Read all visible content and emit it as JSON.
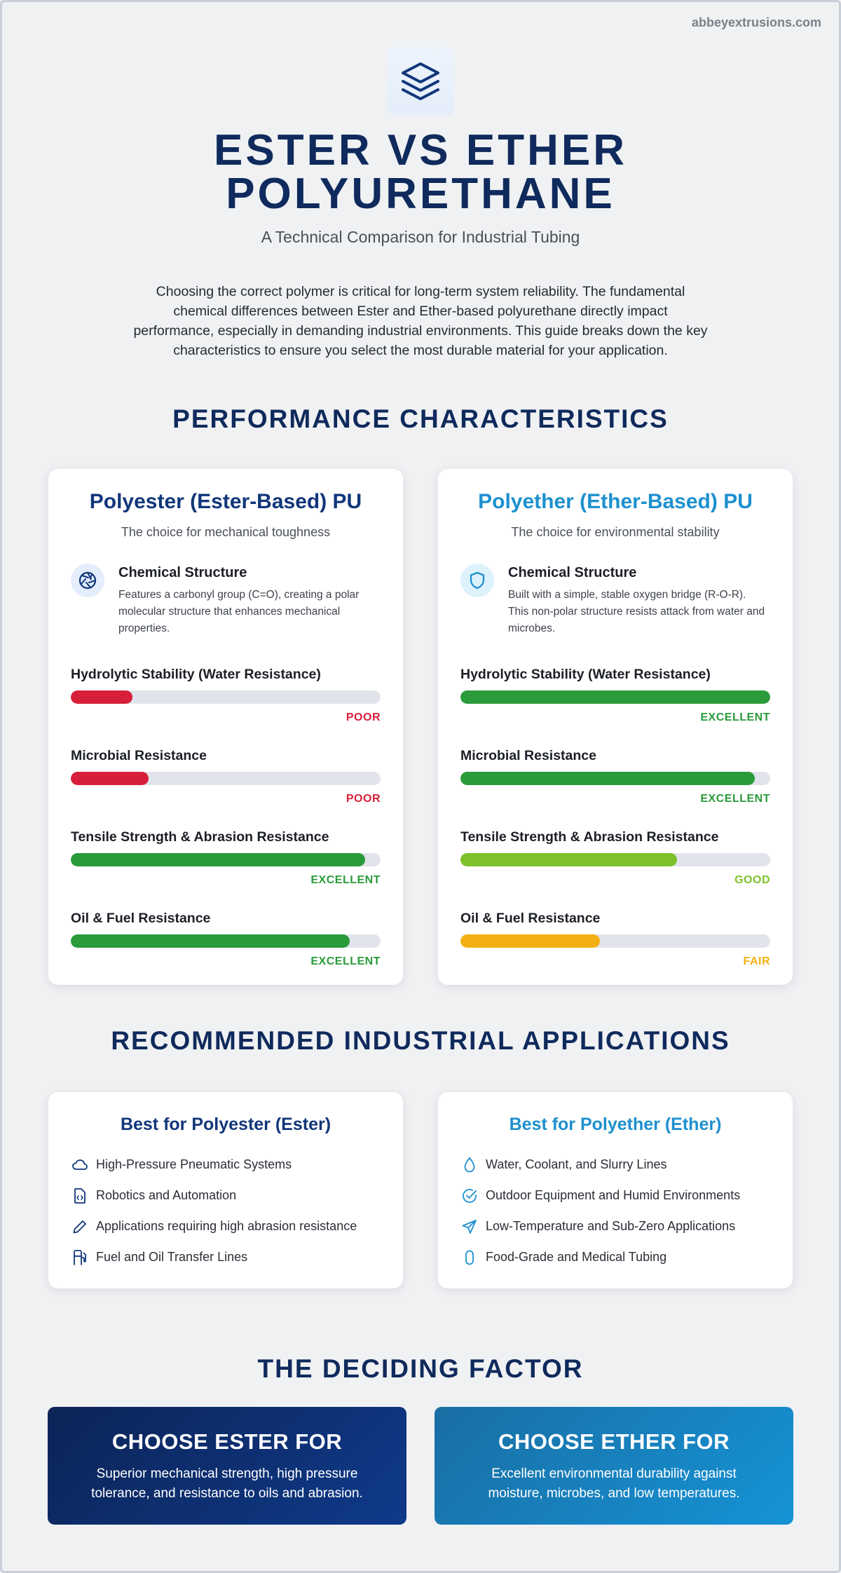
{
  "site": "abbeyextrusions.com",
  "header": {
    "logo_icon": "layers-icon",
    "title_line1": "ESTER VS ETHER",
    "title_line2": "POLYURETHANE",
    "subtitle": "A Technical Comparison for Industrial Tubing",
    "intro": "Choosing the correct polymer is critical for long-term system reliability. The fundamental chemical differences between Ester and Ether-based polyurethane directly impact performance, especially in demanding industrial environments. This guide breaks down the key characteristics to ensure you select the most durable material for your application."
  },
  "colors": {
    "navy": "#0f2a5c",
    "ester_blue": "#11367a",
    "ether_blue": "#1d90cf",
    "poor": "#d81f3a",
    "excellent": "#2a9a3a",
    "good": "#7dc12a",
    "fair": "#f4b012"
  },
  "performance": {
    "heading": "PERFORMANCE CHARACTERISTICS",
    "ester": {
      "title": "Polyester (Ester-Based) PU",
      "subtitle": "The choice for mechanical toughness",
      "chem_icon": "aperture-icon",
      "chem_title": "Chemical Structure",
      "chem_desc": "Features a carbonyl group (C=O), creating a polar molecular structure that enhances mechanical properties.",
      "metrics": [
        {
          "label": "Hydrolytic Stability (Water Resistance)",
          "rating": "POOR",
          "level": 0.2,
          "color": "#d81f3a"
        },
        {
          "label": "Microbial Resistance",
          "rating": "POOR",
          "level": 0.25,
          "color": "#d81f3a"
        },
        {
          "label": "Tensile Strength & Abrasion Resistance",
          "rating": "EXCELLENT",
          "level": 0.95,
          "color": "#2a9a3a"
        },
        {
          "label": "Oil & Fuel Resistance",
          "rating": "EXCELLENT",
          "level": 0.9,
          "color": "#2a9a3a"
        }
      ]
    },
    "ether": {
      "title": "Polyether (Ether-Based) PU",
      "subtitle": "The choice for environmental stability",
      "chem_icon": "shield-icon",
      "chem_title": "Chemical Structure",
      "chem_desc": "Built with a simple, stable oxygen bridge (R-O-R). This non-polar structure resists attack from water and microbes.",
      "metrics": [
        {
          "label": "Hydrolytic Stability (Water Resistance)",
          "rating": "EXCELLENT",
          "level": 1.0,
          "color": "#2a9a3a"
        },
        {
          "label": "Microbial Resistance",
          "rating": "EXCELLENT",
          "level": 0.95,
          "color": "#2a9a3a"
        },
        {
          "label": "Tensile Strength & Abrasion Resistance",
          "rating": "GOOD",
          "level": 0.7,
          "color": "#7dc12a"
        },
        {
          "label": "Oil & Fuel Resistance",
          "rating": "FAIR",
          "level": 0.45,
          "color": "#f4b012"
        }
      ]
    }
  },
  "applications": {
    "heading": "RECOMMENDED INDUSTRIAL APPLICATIONS",
    "ester": {
      "title": "Best for Polyester (Ester)",
      "items": [
        {
          "icon": "cloud-icon",
          "text": "High-Pressure Pneumatic Systems"
        },
        {
          "icon": "file-code-icon",
          "text": "Robotics and Automation"
        },
        {
          "icon": "pen-icon",
          "text": "Applications requiring high abrasion resistance"
        },
        {
          "icon": "fuel-pump-icon",
          "text": "Fuel and Oil Transfer Lines"
        }
      ]
    },
    "ether": {
      "title": "Best for Polyether (Ether)",
      "items": [
        {
          "icon": "droplet-icon",
          "text": "Water, Coolant, and Slurry Lines"
        },
        {
          "icon": "check-circle-icon",
          "text": "Outdoor Equipment and Humid Environments"
        },
        {
          "icon": "send-icon",
          "text": "Low-Temperature and Sub-Zero Applications"
        },
        {
          "icon": "capsule-icon",
          "text": "Food-Grade and Medical Tubing"
        }
      ]
    }
  },
  "deciding": {
    "heading": "THE DECIDING FACTOR",
    "ester": {
      "title": "CHOOSE ESTER FOR",
      "text": "Superior mechanical strength, high pressure tolerance, and resistance to oils and abrasion."
    },
    "ether": {
      "title": "CHOOSE ETHER FOR",
      "text": "Excellent environmental durability against moisture, microbes, and low temperatures."
    }
  }
}
